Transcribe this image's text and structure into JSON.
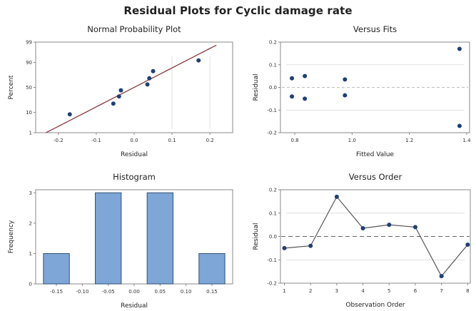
{
  "title": "Residual Plots for Cyclic damage rate",
  "colors": {
    "point": "#1f3f73",
    "bar_fill": "#7ea6d6",
    "bar_stroke": "#2f4f78",
    "line": "#555555",
    "fit_line": "#8b3a3a",
    "frame": "#888888",
    "grid": "#d8d8d8"
  },
  "chart_data": [
    {
      "id": "npp",
      "type": "scatter",
      "title": "Normal Probability Plot",
      "xlabel": "Residual",
      "ylabel": "Percent",
      "xlim": [
        -0.26,
        0.26
      ],
      "ylim_percent": [
        1,
        99
      ],
      "x_ticks": [
        -0.2,
        -0.1,
        0.0,
        0.1,
        0.2
      ],
      "x_tick_labels": [
        "-0.2",
        "-0.1",
        "0.0",
        "0.1",
        "0.2"
      ],
      "y_ticks": [
        1,
        10,
        50,
        90,
        99
      ],
      "y_tick_labels": [
        "1",
        "10",
        "50",
        "90",
        "99"
      ],
      "points": [
        {
          "x": -0.17,
          "y": 8.3
        },
        {
          "x": -0.055,
          "y": 20.2
        },
        {
          "x": -0.04,
          "y": 32.1
        },
        {
          "x": -0.035,
          "y": 44.0
        },
        {
          "x": 0.035,
          "y": 56.0
        },
        {
          "x": 0.04,
          "y": 67.9
        },
        {
          "x": 0.05,
          "y": 79.8
        },
        {
          "x": 0.17,
          "y": 91.7
        }
      ],
      "fit_line": {
        "mean": 0.0,
        "sd": 0.1
      }
    },
    {
      "id": "fits",
      "type": "scatter",
      "title": "Versus Fits",
      "xlabel": "Fitted Value",
      "ylabel": "Residual",
      "xlim": [
        0.75,
        1.41
      ],
      "ylim": [
        -0.2,
        0.2
      ],
      "x_ticks": [
        0.8,
        1.0,
        1.2,
        1.4
      ],
      "x_tick_labels": [
        "0.8",
        "1.0",
        "1.2",
        "1.4"
      ],
      "y_ticks": [
        -0.2,
        -0.1,
        0.0,
        0.1,
        0.2
      ],
      "y_tick_labels": [
        "-0.2",
        "-0.1",
        "0.0",
        "0.1",
        "0.2"
      ],
      "reference_line": 0.0,
      "points": [
        {
          "x": 0.79,
          "y": 0.04
        },
        {
          "x": 0.79,
          "y": -0.04
        },
        {
          "x": 0.835,
          "y": 0.05
        },
        {
          "x": 0.835,
          "y": -0.05
        },
        {
          "x": 0.975,
          "y": 0.035
        },
        {
          "x": 0.975,
          "y": -0.035
        },
        {
          "x": 1.375,
          "y": 0.17
        },
        {
          "x": 1.375,
          "y": -0.17
        }
      ]
    },
    {
      "id": "hist",
      "type": "bar",
      "title": "Histogram",
      "xlabel": "Residual",
      "ylabel": "Frequency",
      "xlim": [
        -0.19,
        0.19
      ],
      "ylim": [
        0,
        3.1
      ],
      "x_ticks": [
        -0.15,
        -0.1,
        -0.05,
        0.0,
        0.05,
        0.1,
        0.15
      ],
      "x_tick_labels": [
        "-0.15",
        "-0.10",
        "-0.05",
        "0.00",
        "0.05",
        "0.10",
        "0.15"
      ],
      "y_ticks": [
        0,
        1,
        2,
        3
      ],
      "y_tick_labels": [
        "0",
        "1",
        "2",
        "3"
      ],
      "bin_width": 0.05,
      "categories": [
        "-0.15",
        "-0.10",
        "-0.05",
        "0.00",
        "0.05",
        "0.10",
        "0.15"
      ],
      "values": [
        1,
        0,
        3,
        0,
        3,
        0,
        1
      ]
    },
    {
      "id": "order",
      "type": "line",
      "title": "Versus Order",
      "xlabel": "Observation Order",
      "ylabel": "Residual",
      "xlim": [
        0.85,
        8.1
      ],
      "ylim": [
        -0.2,
        0.2
      ],
      "x_ticks": [
        1,
        2,
        3,
        4,
        5,
        6,
        7,
        8
      ],
      "x_tick_labels": [
        "1",
        "2",
        "3",
        "4",
        "5",
        "6",
        "7",
        "8"
      ],
      "y_ticks": [
        -0.2,
        -0.1,
        0.0,
        0.1,
        0.2
      ],
      "y_tick_labels": [
        "-0.2",
        "-0.1",
        "0.0",
        "0.1",
        "0.2"
      ],
      "reference_line": 0.0,
      "x": [
        1,
        2,
        3,
        4,
        5,
        6,
        7,
        8
      ],
      "values": [
        -0.05,
        -0.04,
        0.17,
        0.035,
        0.05,
        0.04,
        -0.17,
        -0.035
      ]
    }
  ]
}
